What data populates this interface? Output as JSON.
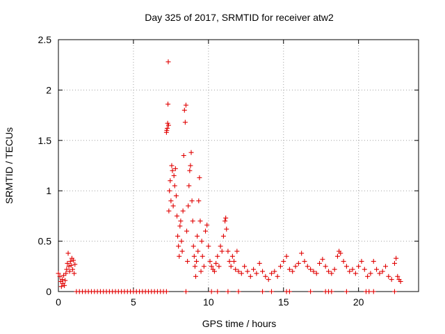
{
  "chart_data": {
    "type": "scatter",
    "title": "Day 325 of 2017, SRMTID for receiver atw2",
    "xlabel": "GPS time / hours",
    "ylabel": "SRMTID / TECUs",
    "xlim": [
      0,
      24
    ],
    "ylim": [
      0,
      2.5
    ],
    "x_ticks": [
      0,
      5,
      10,
      15,
      20
    ],
    "y_ticks": [
      0,
      0.5,
      1,
      1.5,
      2,
      2.5
    ],
    "grid": true,
    "marker": "+",
    "color": "#e00000",
    "series": [
      {
        "name": "atw2",
        "points": [
          [
            0.0,
            0.18
          ],
          [
            0.1,
            0.15
          ],
          [
            0.15,
            0.1
          ],
          [
            0.2,
            0.05
          ],
          [
            0.25,
            0.12
          ],
          [
            0.3,
            0.08
          ],
          [
            0.35,
            0.16
          ],
          [
            0.4,
            0.06
          ],
          [
            0.45,
            0.11
          ],
          [
            0.5,
            0.18
          ],
          [
            0.55,
            0.22
          ],
          [
            0.6,
            0.28
          ],
          [
            0.65,
            0.38
          ],
          [
            0.7,
            0.25
          ],
          [
            0.75,
            0.2
          ],
          [
            0.8,
            0.3
          ],
          [
            0.85,
            0.26
          ],
          [
            0.9,
            0.33
          ],
          [
            0.95,
            0.22
          ],
          [
            1.0,
            0.31
          ],
          [
            1.05,
            0.18
          ],
          [
            1.1,
            0.27
          ],
          [
            7.2,
            1.58
          ],
          [
            7.22,
            1.6
          ],
          [
            7.25,
            1.62
          ],
          [
            7.28,
            1.67
          ],
          [
            7.3,
            1.86
          ],
          [
            7.32,
            2.28
          ],
          [
            7.34,
            1.65
          ],
          [
            7.36,
            0.8
          ],
          [
            7.4,
            1.0
          ],
          [
            7.45,
            1.1
          ],
          [
            7.5,
            0.9
          ],
          [
            7.55,
            1.25
          ],
          [
            7.6,
            1.2
          ],
          [
            7.65,
            0.85
          ],
          [
            7.7,
            1.15
          ],
          [
            7.75,
            1.05
          ],
          [
            7.8,
            1.22
          ],
          [
            7.85,
            0.95
          ],
          [
            7.9,
            0.75
          ],
          [
            7.95,
            0.55
          ],
          [
            8.0,
            0.45
          ],
          [
            8.05,
            0.35
          ],
          [
            8.1,
            0.65
          ],
          [
            8.15,
            0.7
          ],
          [
            8.2,
            0.5
          ],
          [
            8.25,
            0.4
          ],
          [
            8.3,
            0.8
          ],
          [
            8.35,
            1.35
          ],
          [
            8.4,
            1.8
          ],
          [
            8.45,
            1.68
          ],
          [
            8.5,
            1.85
          ],
          [
            8.55,
            0.6
          ],
          [
            8.6,
            0.3
          ],
          [
            8.65,
            0.85
          ],
          [
            8.7,
            1.05
          ],
          [
            8.75,
            1.2
          ],
          [
            8.8,
            1.25
          ],
          [
            8.85,
            1.38
          ],
          [
            8.9,
            0.9
          ],
          [
            8.95,
            0.7
          ],
          [
            9.0,
            0.45
          ],
          [
            9.05,
            0.35
          ],
          [
            9.1,
            0.25
          ],
          [
            9.15,
            0.15
          ],
          [
            9.2,
            0.3
          ],
          [
            9.25,
            0.55
          ],
          [
            9.3,
            0.4
          ],
          [
            9.35,
            0.9
          ],
          [
            9.4,
            1.13
          ],
          [
            9.45,
            0.7
          ],
          [
            9.5,
            0.2
          ],
          [
            9.55,
            0.5
          ],
          [
            9.6,
            0.35
          ],
          [
            9.7,
            0.25
          ],
          [
            9.8,
            0.6
          ],
          [
            9.9,
            0.66
          ],
          [
            10.0,
            0.45
          ],
          [
            10.1,
            0.3
          ],
          [
            10.2,
            0.25
          ],
          [
            10.3,
            0.22
          ],
          [
            10.4,
            0.2
          ],
          [
            10.5,
            0.28
          ],
          [
            10.6,
            0.35
          ],
          [
            10.7,
            0.25
          ],
          [
            10.8,
            0.45
          ],
          [
            10.9,
            0.4
          ],
          [
            11.0,
            0.55
          ],
          [
            11.1,
            0.7
          ],
          [
            11.15,
            0.73
          ],
          [
            11.2,
            0.62
          ],
          [
            11.3,
            0.4
          ],
          [
            11.4,
            0.3
          ],
          [
            11.5,
            0.25
          ],
          [
            11.6,
            0.35
          ],
          [
            11.7,
            0.3
          ],
          [
            11.8,
            0.22
          ],
          [
            11.9,
            0.4
          ],
          [
            12.0,
            0.2
          ],
          [
            12.2,
            0.18
          ],
          [
            12.4,
            0.25
          ],
          [
            12.6,
            0.2
          ],
          [
            12.8,
            0.15
          ],
          [
            13.0,
            0.22
          ],
          [
            13.2,
            0.18
          ],
          [
            13.4,
            0.28
          ],
          [
            13.6,
            0.2
          ],
          [
            13.8,
            0.15
          ],
          [
            14.0,
            0.12
          ],
          [
            14.2,
            0.18
          ],
          [
            14.4,
            0.2
          ],
          [
            14.6,
            0.15
          ],
          [
            14.8,
            0.25
          ],
          [
            15.0,
            0.3
          ],
          [
            15.2,
            0.35
          ],
          [
            15.4,
            0.22
          ],
          [
            15.6,
            0.2
          ],
          [
            15.8,
            0.25
          ],
          [
            16.0,
            0.28
          ],
          [
            16.2,
            0.38
          ],
          [
            16.4,
            0.3
          ],
          [
            16.6,
            0.25
          ],
          [
            16.8,
            0.22
          ],
          [
            17.0,
            0.2
          ],
          [
            17.2,
            0.18
          ],
          [
            17.4,
            0.28
          ],
          [
            17.6,
            0.32
          ],
          [
            17.8,
            0.25
          ],
          [
            18.0,
            0.2
          ],
          [
            18.2,
            0.18
          ],
          [
            18.4,
            0.22
          ],
          [
            18.6,
            0.35
          ],
          [
            18.7,
            0.4
          ],
          [
            18.8,
            0.38
          ],
          [
            19.0,
            0.3
          ],
          [
            19.2,
            0.25
          ],
          [
            19.4,
            0.2
          ],
          [
            19.6,
            0.22
          ],
          [
            19.8,
            0.18
          ],
          [
            20.0,
            0.25
          ],
          [
            20.2,
            0.3
          ],
          [
            20.4,
            0.22
          ],
          [
            20.6,
            0.15
          ],
          [
            20.8,
            0.18
          ],
          [
            21.0,
            0.3
          ],
          [
            21.2,
            0.22
          ],
          [
            21.4,
            0.18
          ],
          [
            21.6,
            0.2
          ],
          [
            21.8,
            0.25
          ],
          [
            22.0,
            0.15
          ],
          [
            22.2,
            0.12
          ],
          [
            22.4,
            0.28
          ],
          [
            22.5,
            0.33
          ],
          [
            22.6,
            0.15
          ],
          [
            22.7,
            0.12
          ],
          [
            22.8,
            0.1
          ]
        ]
      }
    ],
    "zero_points_x": [
      1.2,
      1.4,
      1.6,
      1.8,
      2.0,
      2.2,
      2.4,
      2.6,
      2.8,
      3.0,
      3.2,
      3.4,
      3.6,
      3.8,
      4.0,
      4.2,
      4.4,
      4.6,
      4.8,
      5.0,
      5.2,
      5.4,
      5.6,
      5.8,
      6.0,
      6.2,
      6.4,
      6.6,
      6.8,
      7.0,
      7.2,
      8.5,
      10.2,
      10.6,
      11.3,
      12.0,
      13.6,
      14.2,
      15.2,
      15.4,
      16.8,
      17.8,
      18.0,
      18.2,
      19.2,
      20.5,
      20.7,
      21.0,
      22.4
    ]
  }
}
